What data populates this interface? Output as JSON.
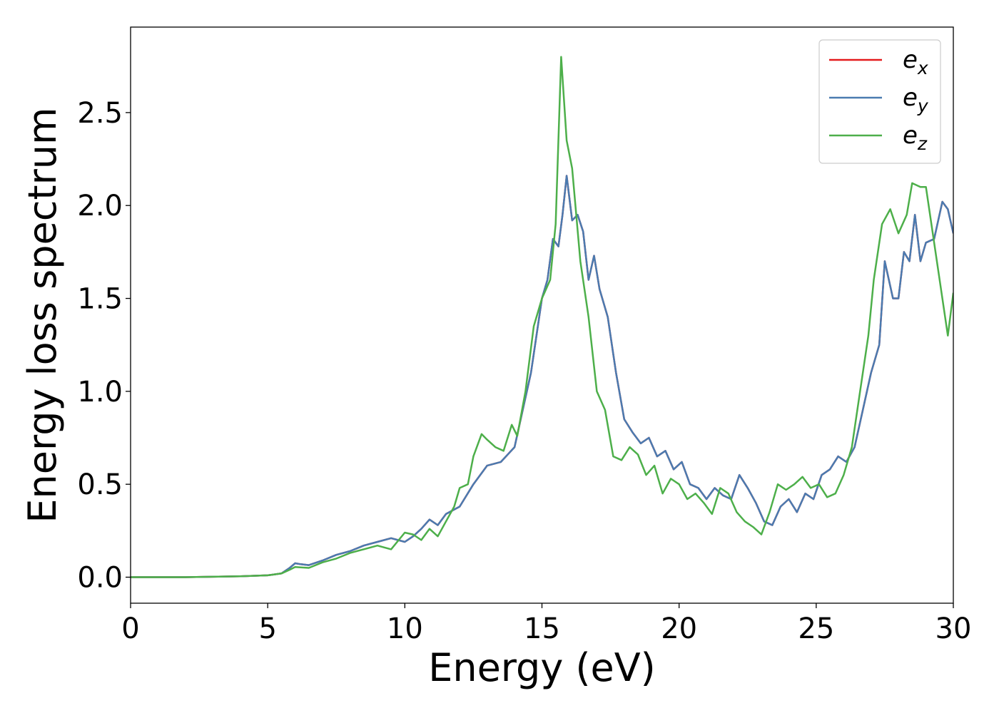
{
  "chart_data": {
    "type": "line",
    "title": "",
    "xlabel": "Energy (eV)",
    "ylabel": "Energy loss spectrum",
    "xlim": [
      0,
      30
    ],
    "ylim": [
      -0.14,
      2.96
    ],
    "xticks": [
      "0",
      "5",
      "10",
      "15",
      "20",
      "25",
      "30"
    ],
    "xtick_values": [
      0,
      5,
      10,
      15,
      20,
      25,
      30
    ],
    "yticks": [
      "0.0",
      "0.5",
      "1.0",
      "1.5",
      "2.0",
      "2.5"
    ],
    "ytick_values": [
      0.0,
      0.5,
      1.0,
      1.5,
      2.0,
      2.5
    ],
    "grid": false,
    "legend_position": "top-right",
    "series": [
      {
        "name": "e",
        "subscript": "x",
        "color": "#e41a1c",
        "x": [
          0,
          2,
          4,
          5,
          5.5,
          5.8,
          6.0,
          6.2,
          6.5,
          7.0,
          7.5,
          8.0,
          8.5,
          9.0,
          9.5,
          10.0,
          10.3,
          10.6,
          10.9,
          11.2,
          11.5,
          12.0,
          12.5,
          13.0,
          13.5,
          14.0,
          14.3,
          14.6,
          14.8,
          15.0,
          15.2,
          15.4,
          15.6,
          15.75,
          15.9,
          16.1,
          16.3,
          16.5,
          16.7,
          16.9,
          17.1,
          17.4,
          17.7,
          18.0,
          18.3,
          18.6,
          18.9,
          19.2,
          19.5,
          19.8,
          20.1,
          20.4,
          20.7,
          21.0,
          21.3,
          21.6,
          21.9,
          22.2,
          22.5,
          22.8,
          23.1,
          23.4,
          23.7,
          24.0,
          24.3,
          24.6,
          24.9,
          25.2,
          25.5,
          25.8,
          26.1,
          26.4,
          26.7,
          27.0,
          27.3,
          27.5,
          27.8,
          28.0,
          28.2,
          28.4,
          28.6,
          28.8,
          29.0,
          29.3,
          29.6,
          29.8,
          30.0
        ],
        "y": [
          0.0,
          0.0,
          0.005,
          0.01,
          0.02,
          0.05,
          0.075,
          0.07,
          0.065,
          0.09,
          0.12,
          0.14,
          0.17,
          0.19,
          0.21,
          0.19,
          0.22,
          0.26,
          0.31,
          0.28,
          0.34,
          0.38,
          0.5,
          0.6,
          0.62,
          0.7,
          0.9,
          1.1,
          1.3,
          1.5,
          1.6,
          1.82,
          1.78,
          1.95,
          2.16,
          1.92,
          1.95,
          1.86,
          1.6,
          1.73,
          1.55,
          1.4,
          1.1,
          0.85,
          0.78,
          0.72,
          0.75,
          0.65,
          0.68,
          0.58,
          0.62,
          0.5,
          0.48,
          0.42,
          0.48,
          0.44,
          0.42,
          0.55,
          0.48,
          0.4,
          0.3,
          0.28,
          0.38,
          0.42,
          0.35,
          0.45,
          0.42,
          0.55,
          0.58,
          0.65,
          0.62,
          0.7,
          0.9,
          1.1,
          1.25,
          1.7,
          1.5,
          1.5,
          1.75,
          1.7,
          1.95,
          1.7,
          1.8,
          1.82,
          2.02,
          1.98,
          1.85
        ]
      },
      {
        "name": "e",
        "subscript": "y",
        "color": "#4a7bb0",
        "x": [
          0,
          2,
          4,
          5,
          5.5,
          5.8,
          6.0,
          6.2,
          6.5,
          7.0,
          7.5,
          8.0,
          8.5,
          9.0,
          9.5,
          10.0,
          10.3,
          10.6,
          10.9,
          11.2,
          11.5,
          12.0,
          12.5,
          13.0,
          13.5,
          14.0,
          14.3,
          14.6,
          14.8,
          15.0,
          15.2,
          15.4,
          15.6,
          15.75,
          15.9,
          16.1,
          16.3,
          16.5,
          16.7,
          16.9,
          17.1,
          17.4,
          17.7,
          18.0,
          18.3,
          18.6,
          18.9,
          19.2,
          19.5,
          19.8,
          20.1,
          20.4,
          20.7,
          21.0,
          21.3,
          21.6,
          21.9,
          22.2,
          22.5,
          22.8,
          23.1,
          23.4,
          23.7,
          24.0,
          24.3,
          24.6,
          24.9,
          25.2,
          25.5,
          25.8,
          26.1,
          26.4,
          26.7,
          27.0,
          27.3,
          27.5,
          27.8,
          28.0,
          28.2,
          28.4,
          28.6,
          28.8,
          29.0,
          29.3,
          29.6,
          29.8,
          30.0
        ],
        "y": [
          0.0,
          0.0,
          0.005,
          0.01,
          0.02,
          0.05,
          0.075,
          0.07,
          0.065,
          0.09,
          0.12,
          0.14,
          0.17,
          0.19,
          0.21,
          0.19,
          0.22,
          0.26,
          0.31,
          0.28,
          0.34,
          0.38,
          0.5,
          0.6,
          0.62,
          0.7,
          0.9,
          1.1,
          1.3,
          1.5,
          1.6,
          1.82,
          1.78,
          1.95,
          2.16,
          1.92,
          1.95,
          1.86,
          1.6,
          1.73,
          1.55,
          1.4,
          1.1,
          0.85,
          0.78,
          0.72,
          0.75,
          0.65,
          0.68,
          0.58,
          0.62,
          0.5,
          0.48,
          0.42,
          0.48,
          0.44,
          0.42,
          0.55,
          0.48,
          0.4,
          0.3,
          0.28,
          0.38,
          0.42,
          0.35,
          0.45,
          0.42,
          0.55,
          0.58,
          0.65,
          0.62,
          0.7,
          0.9,
          1.1,
          1.25,
          1.7,
          1.5,
          1.5,
          1.75,
          1.7,
          1.95,
          1.7,
          1.8,
          1.82,
          2.02,
          1.98,
          1.85
        ]
      },
      {
        "name": "e",
        "subscript": "z",
        "color": "#4daf4a",
        "x": [
          0,
          2,
          4,
          5,
          5.5,
          5.8,
          6.0,
          6.5,
          7.0,
          7.5,
          8.0,
          8.5,
          9.0,
          9.5,
          10.0,
          10.3,
          10.6,
          10.9,
          11.2,
          11.5,
          11.8,
          12.0,
          12.3,
          12.5,
          12.8,
          13.0,
          13.3,
          13.6,
          13.9,
          14.1,
          14.4,
          14.7,
          15.0,
          15.3,
          15.5,
          15.7,
          15.9,
          16.1,
          16.4,
          16.7,
          17.0,
          17.3,
          17.6,
          17.9,
          18.2,
          18.5,
          18.8,
          19.1,
          19.4,
          19.7,
          20.0,
          20.3,
          20.6,
          20.9,
          21.2,
          21.5,
          21.8,
          22.1,
          22.4,
          22.7,
          23.0,
          23.3,
          23.6,
          23.9,
          24.2,
          24.5,
          24.8,
          25.1,
          25.4,
          25.7,
          26.0,
          26.3,
          26.6,
          26.9,
          27.1,
          27.4,
          27.7,
          28.0,
          28.3,
          28.5,
          28.8,
          29.0,
          29.3,
          29.5,
          29.8,
          30.0
        ],
        "y": [
          0.0,
          0.0,
          0.005,
          0.01,
          0.02,
          0.04,
          0.055,
          0.05,
          0.08,
          0.1,
          0.13,
          0.15,
          0.17,
          0.15,
          0.24,
          0.23,
          0.2,
          0.26,
          0.22,
          0.3,
          0.38,
          0.48,
          0.5,
          0.65,
          0.77,
          0.74,
          0.7,
          0.68,
          0.82,
          0.76,
          1.0,
          1.35,
          1.5,
          1.6,
          1.9,
          2.8,
          2.35,
          2.2,
          1.7,
          1.4,
          1.0,
          0.9,
          0.65,
          0.63,
          0.7,
          0.66,
          0.55,
          0.6,
          0.45,
          0.53,
          0.5,
          0.42,
          0.45,
          0.4,
          0.34,
          0.48,
          0.45,
          0.35,
          0.3,
          0.27,
          0.23,
          0.35,
          0.5,
          0.47,
          0.5,
          0.54,
          0.48,
          0.5,
          0.43,
          0.45,
          0.55,
          0.7,
          1.0,
          1.3,
          1.6,
          1.9,
          1.98,
          1.85,
          1.95,
          2.12,
          2.1,
          2.1,
          1.8,
          1.6,
          1.3,
          1.53
        ]
      }
    ]
  }
}
